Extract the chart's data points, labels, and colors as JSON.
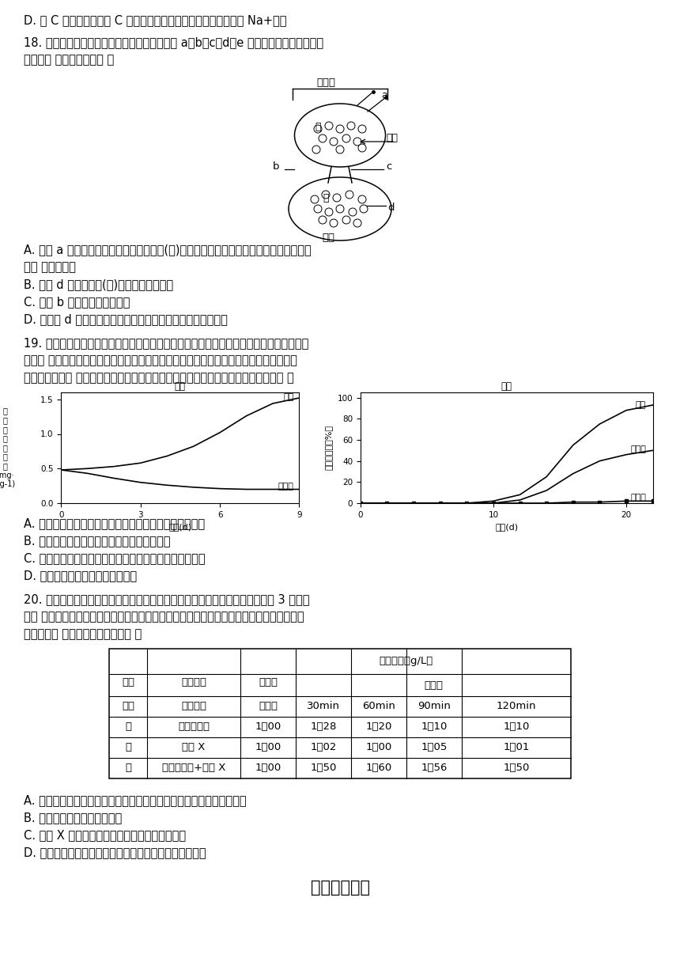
{
  "bg": "#ffffff",
  "line_d": "D. 若 C 为乙酰胆碱，当 C 与乙表面的特异性受体结合时，将导致 Na+内流",
  "q18_line1": "18. 图为人体下丘脑和垂体的结构示意图，其中 a、b、c、d、e 表示结构，甲、乙表示激",
  "q18_line2": "素。下列 叙述错误的是（ ）",
  "q18_A1": "A. 结构 a 为神经分泌细胞，其分泌的激素(甲)，可直接释放到垂体门脉血管的血液中，调",
  "q18_A2": "节腺 垂体的分泌",
  "q18_B": "B. 结构 d 分泌的激素(乙)可能作用于甲状腺",
  "q18_C": "C. 结构 b 能分泌催乳素等激素",
  "q18_D": "D. 若结构 d 分泌是生长激素，可以促进组织细胞的生长和分裂",
  "q19_line1": "19. 为研究红光、远红光及赤霉素对莴苣种子萌发的影响，研究小组进行黑暗条件下莴苣种",
  "q19_line2": "子萌发 的实验。其中红光和远红光对莴苣种子赤霉素含量的影响如图甲所示，红光、远红",
  "q19_line3": "光及外施赤霉素 对莴苣种子萌发的影响如图乙所示。据图分析，下列叙述正确的是（ ）",
  "q19_A": "A. 远红光处理莴苣种子使赤霉素含量增加，促进种子萌发",
  "q19_B": "B. 红光处理可能促进种子细胞内赤霉素的合成",
  "q19_C": "C. 红光与赤霉素处理相比，莴苣种子萌发的响应时间相同",
  "q19_D": "D. 赤霉素为种子萌发提供充足营养",
  "q20_line1": "20. 研究发现血糖水平的升高与多种激素有关。用不同激素处理生理状况相同的 3 组健康",
  "q20_line2": "小鼠 （每种激素在不同组别的剂量相同），分别测定处理前、后血液中葡萄糖含量的变化，",
  "q20_line3": "如下表。下 列相关叙述错误的是（ ）",
  "q20_A": "A. 处理前需要抽血测定血液中葡萄糖含量，目的是在实验中起对照作用",
  "q20_B": "B. 本实验的自变量是血糖浓度",
  "q20_C": "C. 激素 X 的作用可能是促进胰高血糖素升高血糖",
  "q20_D": "D. 检测丙组小鼠是否出现尿糖可用本尼迪特试剂进行检测",
  "final_title": "非选择题部分",
  "diagram_label_xiatiu": "下丘脑",
  "diagram_label_chuiti": "垂体",
  "diagram_label_dongmai": "动脉",
  "diagram_label_jia": "甲",
  "diagram_label_yi": "乙",
  "diagram_label_a": "a",
  "diagram_label_b": "b",
  "diagram_label_c": "c",
  "diagram_label_d": "d",
  "graph_left_title": "图甲",
  "graph_left_ylabel": "种\n子\n赤\n霉\n素\n含\n量\n(mg·\nkg-1)",
  "graph_left_xlabel": "时间(d)",
  "graph_left_label_red": "红光",
  "graph_left_label_farred": "远红光",
  "graph_right_title": "图乙",
  "graph_right_ylabel": "种子萌发率（%）",
  "graph_right_xlabel": "时间(d)",
  "graph_right_label_red": "红光",
  "graph_right_label_gib": "赤霉素",
  "graph_right_label_farred": "远红光",
  "table_col_labels": [
    "组别",
    "实验处理",
    "处理前",
    "30min",
    "60min",
    "90min",
    "120min"
  ],
  "table_header1": "血糖浓度（g/L）",
  "table_header2": "处理后",
  "table_rows": [
    [
      "甲",
      "胰高血糖素",
      "1．00",
      "1．28",
      "1．20",
      "1．10",
      "1．10"
    ],
    [
      "乙",
      "激素 X",
      "1．00",
      "1．02",
      "1．00",
      "1．05",
      "1．01"
    ],
    [
      "丙",
      "胰高血糖素+激素 X",
      "1．00",
      "1．50",
      "1．60",
      "1．56",
      "1．50"
    ]
  ]
}
